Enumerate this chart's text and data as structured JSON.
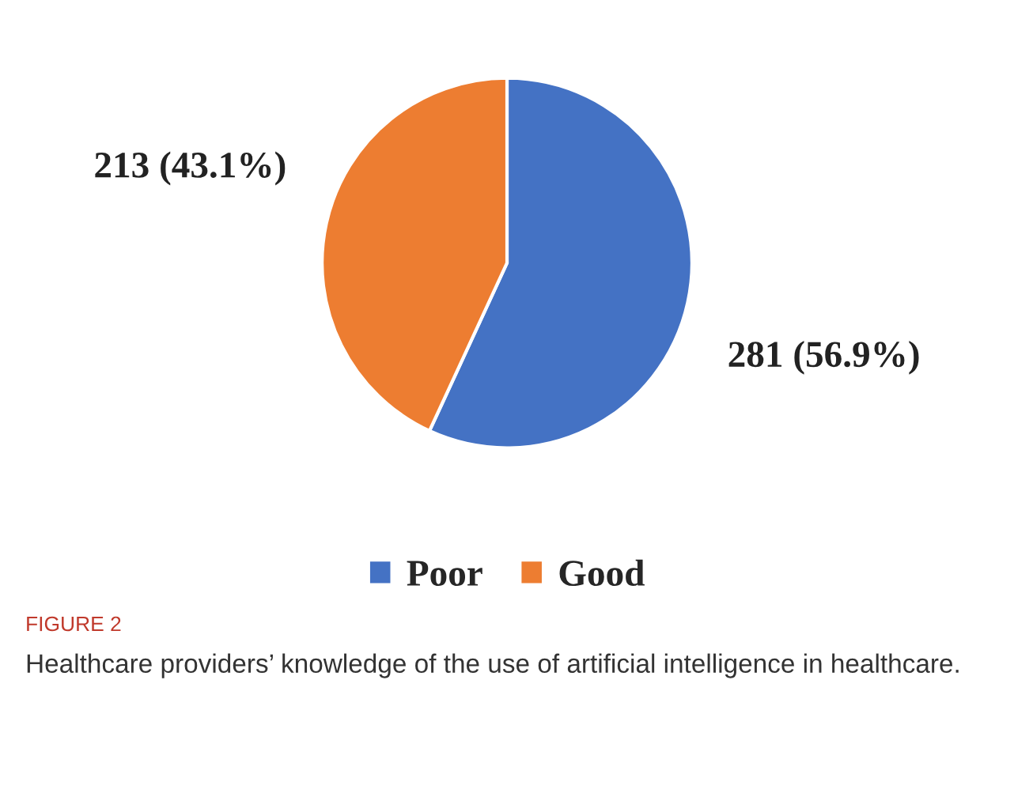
{
  "chart_data": {
    "type": "pie",
    "categories": [
      "Poor",
      "Good"
    ],
    "values": [
      281,
      213
    ],
    "colors": [
      "#4472c4",
      "#ed7d31"
    ],
    "value_labels": [
      "281 (56.9%)",
      "213 (43.1%)"
    ],
    "legend": "bottom",
    "annotations": [
      "FIGURE 2",
      "Healthcare providers’ knowledge of the use of artificial intelligence in healthcare."
    ]
  }
}
